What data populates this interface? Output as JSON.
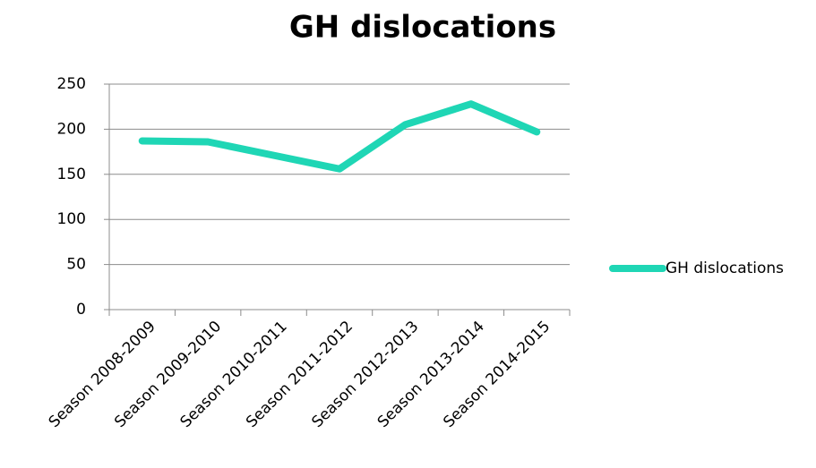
{
  "chart_data": {
    "type": "line",
    "title": "GH dislocations",
    "categories": [
      "Season 2008-2009",
      "Season 2009-2010",
      "Season 2010-2011",
      "Season 2011-2012",
      "Season 2012-2013",
      "Season 2013-2014",
      "Season 2014-2015"
    ],
    "series": [
      {
        "name": "GH dislocations",
        "color": "#1fd6b5",
        "values": [
          187,
          186,
          171,
          156,
          205,
          228,
          197
        ]
      }
    ],
    "ylim": [
      0,
      250
    ],
    "yticks": [
      0,
      50,
      100,
      150,
      200,
      250
    ],
    "grid": true,
    "legend": "right"
  }
}
